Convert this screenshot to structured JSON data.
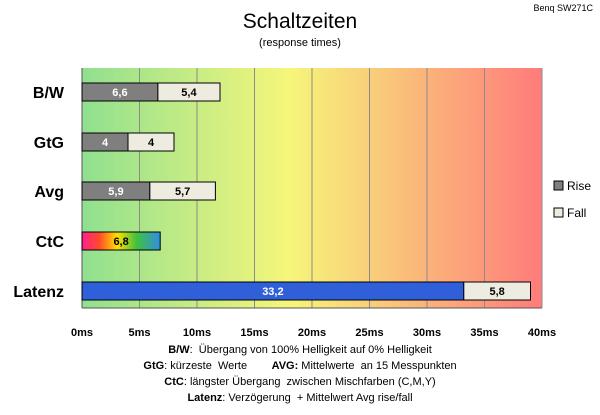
{
  "chart_data": {
    "type": "bar",
    "orientation": "horizontal",
    "stacked": true,
    "title": "Schaltzeiten",
    "subtitle": "(response times)",
    "model": "Benq SW271C",
    "categories": [
      "B/W",
      "GtG",
      "Avg",
      "CtC",
      "Latenz"
    ],
    "series": [
      {
        "name": "Rise",
        "values": [
          6.6,
          4,
          5.9,
          null,
          null
        ],
        "color": "#7f7f7f"
      },
      {
        "name": "Fall",
        "values": [
          5.4,
          4,
          5.7,
          null,
          5.8
        ],
        "color": "#eeece1"
      }
    ],
    "ctc": {
      "category": "CtC",
      "value": 6.8
    },
    "latency": {
      "category": "Latenz",
      "value": 33.2,
      "color": "#2f5fd9"
    },
    "value_labels": [
      [
        "6,6",
        "5,4"
      ],
      [
        "4",
        "4"
      ],
      [
        "5,9",
        "5,7"
      ],
      [
        "6,8"
      ],
      [
        "33,2",
        "5,8"
      ]
    ],
    "x_ticks": [
      0,
      5,
      10,
      15,
      20,
      25,
      30,
      35,
      40
    ],
    "x_tick_labels": [
      "0ms",
      "5ms",
      "10ms",
      "15ms",
      "20ms",
      "25ms",
      "30ms",
      "35ms",
      "40ms"
    ],
    "xlim": [
      0,
      40
    ],
    "grid": true,
    "legend": {
      "position": "right",
      "items": [
        "Rise",
        "Fall"
      ]
    },
    "background_gradient": [
      "#8fe08f",
      "#f6f67a",
      "#ff7b7b"
    ]
  },
  "footnotes": [
    {
      "key": "B/W",
      "text": ":  Übergang von 100% Helligkeit auf 0% Helligkeit"
    },
    {
      "key": "GtG",
      "text": ": kürzeste  Werte        ",
      "key2": "AVG:",
      "text2": " Mittelwerte  an 15 Messpunkten"
    },
    {
      "key": "CtC",
      "text": ": längster Übergang  zwischen Mischfarben (C,M,Y)"
    },
    {
      "key": "Latenz",
      "text": ": Verzögerung  + Mittelwert Avg rise/fall"
    }
  ]
}
